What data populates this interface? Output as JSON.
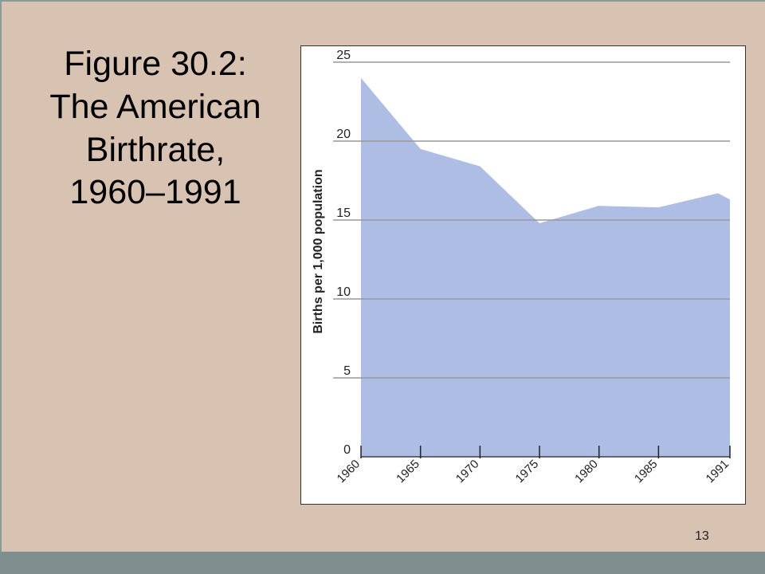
{
  "slide": {
    "title": "Figure 30.2:\nThe American\nBirthrate,\n1960–1991",
    "page_number": "13"
  },
  "colors": {
    "slide_background": "#d8c2b2",
    "footer_bar": "#7f8f8f",
    "area_fill": "#aebde3",
    "gridline": "#999999"
  },
  "chart_data": {
    "type": "area",
    "title": "",
    "xlabel": "",
    "ylabel": "Births per 1,000 population",
    "x": [
      1960,
      1965,
      1970,
      1975,
      1980,
      1985,
      1990,
      1991
    ],
    "series": [
      {
        "values": [
          24.0,
          19.5,
          18.4,
          14.8,
          15.9,
          15.8,
          16.7,
          16.3
        ]
      }
    ],
    "x_ticks": [
      "1960",
      "1965",
      "1970",
      "1975",
      "1980",
      "1985",
      "1991"
    ],
    "y_ticks": [
      "0",
      "5",
      "10",
      "15",
      "20",
      "25"
    ],
    "xlim": [
      1960,
      1991
    ],
    "ylim": [
      0,
      25
    ],
    "grid": true,
    "legend": "none"
  }
}
